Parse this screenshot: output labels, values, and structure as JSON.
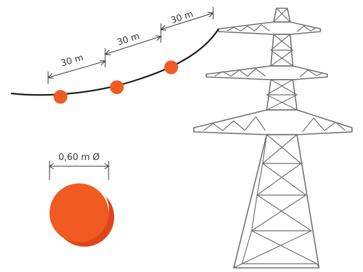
{
  "diagram": {
    "spacing_labels": [
      "30 m",
      "30 m",
      "30 m"
    ],
    "diameter_label": "0,60 m Ø"
  },
  "colors": {
    "marker_ball": "#f15a22",
    "marker_ball_shade": "#e0451a",
    "cable": "#1a1a1a",
    "tower": "#6e6e6e",
    "dimension": "#333333",
    "background": "#ffffff"
  }
}
